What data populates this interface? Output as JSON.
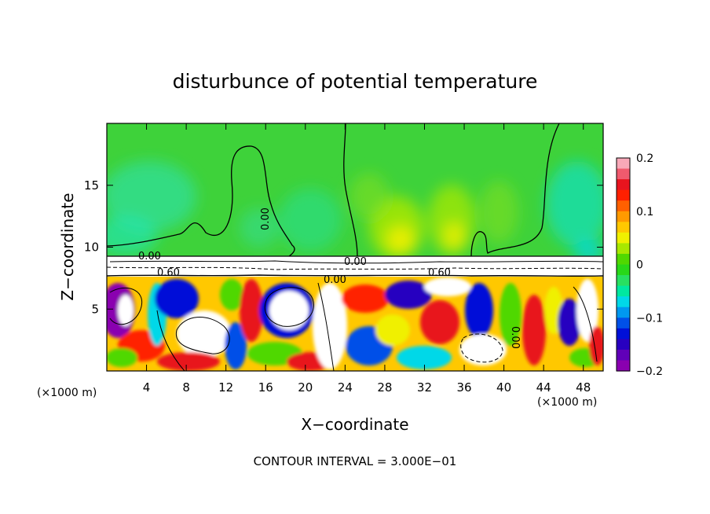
{
  "chart_data": {
    "type": "heatmap",
    "title": "disturbunce of potential temperature",
    "xlabel": "X−coordinate",
    "ylabel": "Z−coordinate",
    "x_unit_label": "(×1000 m)",
    "z_unit_label": "(×1000 m)",
    "xlim": [
      0,
      50
    ],
    "ylim": [
      0,
      20
    ],
    "x_ticks": [
      4,
      8,
      12,
      16,
      20,
      24,
      28,
      32,
      36,
      40,
      44,
      48
    ],
    "x_tick_labels": [
      "4",
      "8",
      "12",
      "16",
      "20",
      "24",
      "28",
      "32",
      "36",
      "40",
      "44",
      "48"
    ],
    "y_ticks": [
      5,
      10,
      15
    ],
    "y_tick_labels": [
      "5",
      "10",
      "15"
    ],
    "colorbar": {
      "range": [
        -0.2,
        0.2
      ],
      "ticks": [
        0.2,
        0.1,
        0,
        -0.1,
        -0.2
      ],
      "tick_labels": [
        "0.2",
        "0.1",
        "0",
        "−0.1",
        "−0.2"
      ],
      "colors": [
        "#f8a8b8",
        "#f05a6e",
        "#e8141e",
        "#ff2000",
        "#ff6000",
        "#ff9a00",
        "#ffc800",
        "#f0f000",
        "#a8e800",
        "#50d800",
        "#28d818",
        "#28e060",
        "#00e8a0",
        "#00d8e8",
        "#0098f0",
        "#0050e8",
        "#0010d8",
        "#2800c0",
        "#6000b8",
        "#8a00b0"
      ]
    },
    "contour_labels": [
      {
        "text": "0.00",
        "x": 4.6,
        "z": 9.1
      },
      {
        "text": "0.60",
        "x": 7.0,
        "z": 7.8
      },
      {
        "text": "0.00",
        "x": 17.0,
        "z": 12.5
      },
      {
        "text": "0.00",
        "x": 24.5,
        "z": 8.6
      },
      {
        "text": "0.00",
        "x": 23.0,
        "z": 7.3
      },
      {
        "text": "0.60",
        "x": 34.0,
        "z": 7.8
      },
      {
        "text": "0.00",
        "x": 40.5,
        "z": 3.3
      }
    ],
    "footer": "CONTOUR INTERVAL = 3.000E−01"
  }
}
